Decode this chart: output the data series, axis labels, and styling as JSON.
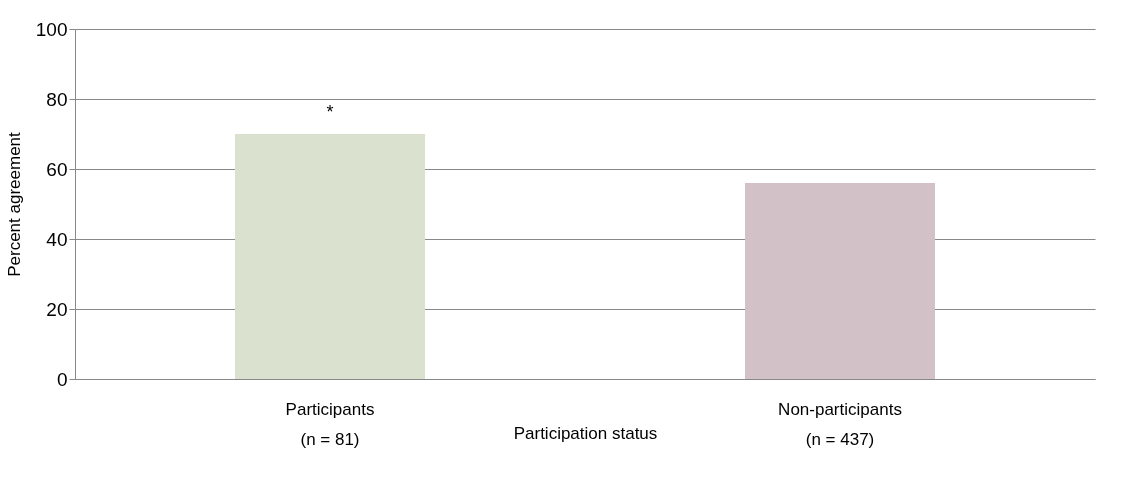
{
  "chart_data": {
    "type": "bar",
    "xlabel": "Participation status",
    "ylabel": "Percent agreement",
    "categories": [
      "Participants\n(n = 81)",
      "Non-participants\n(n = 437)"
    ],
    "values": [
      70,
      56
    ],
    "colors": [
      "#dae1cf",
      "#d2c1c7"
    ],
    "ylim": [
      0,
      100
    ],
    "yticks": [
      0,
      20,
      40,
      60,
      80,
      100
    ],
    "grid": "y",
    "annotations": [
      {
        "text": "*",
        "x": "Participants\n(n = 81)",
        "y": 70
      }
    ]
  }
}
